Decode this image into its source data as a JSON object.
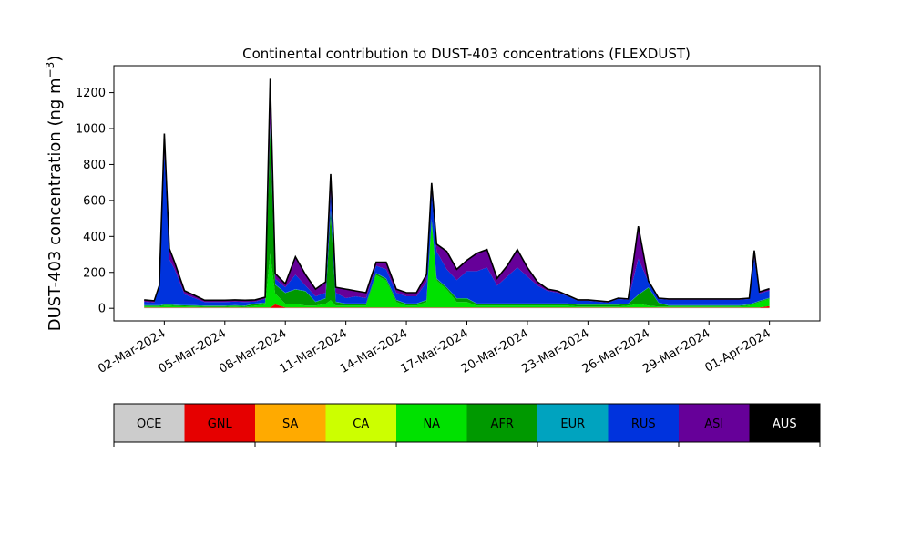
{
  "chart_data": {
    "type": "area",
    "stacked": true,
    "title": "Continental contribution to DUST-403 concentrations (FLEXDUST)",
    "ylabel_main": "DUST-403 concentration (ng m",
    "ylabel_exp": "−3",
    "ylabel_close": ")",
    "xlabel": "",
    "ylim": [
      -70,
      1350
    ],
    "xlim": [
      "2024-02-28T12:00",
      "2024-04-03T12:00"
    ],
    "yticks": [
      0,
      200,
      400,
      600,
      800,
      1000,
      1200
    ],
    "xticks": [
      {
        "date": "2024-03-02",
        "label": "02-Mar-2024"
      },
      {
        "date": "2024-03-05",
        "label": "05-Mar-2024"
      },
      {
        "date": "2024-03-08",
        "label": "08-Mar-2024"
      },
      {
        "date": "2024-03-11",
        "label": "11-Mar-2024"
      },
      {
        "date": "2024-03-14",
        "label": "14-Mar-2024"
      },
      {
        "date": "2024-03-17",
        "label": "17-Mar-2024"
      },
      {
        "date": "2024-03-20",
        "label": "20-Mar-2024"
      },
      {
        "date": "2024-03-23",
        "label": "23-Mar-2024"
      },
      {
        "date": "2024-03-26",
        "label": "26-Mar-2024"
      },
      {
        "date": "2024-03-29",
        "label": "29-Mar-2024"
      },
      {
        "date": "2024-04-01",
        "label": "01-Apr-2024"
      }
    ],
    "grid": false,
    "legend": {
      "placement": "below",
      "entries": [
        {
          "name": "OCE",
          "color": "#cccccc"
        },
        {
          "name": "GNL",
          "color": "#e60000"
        },
        {
          "name": "SA",
          "color": "#ffaa00"
        },
        {
          "name": "CA",
          "color": "#ccff00"
        },
        {
          "name": "NA",
          "color": "#00e100"
        },
        {
          "name": "AFR",
          "color": "#009900"
        },
        {
          "name": "EUR",
          "color": "#00a3bf"
        },
        {
          "name": "RUS",
          "color": "#0033dd"
        },
        {
          "name": "ASI",
          "color": "#660099"
        },
        {
          "name": "AUS",
          "color": "#000000"
        }
      ]
    },
    "x": [
      "2024-03-01T00:00",
      "2024-03-01T12:00",
      "2024-03-01T18:00",
      "2024-03-02T00:00",
      "2024-03-02T06:00",
      "2024-03-02T12:00",
      "2024-03-03T00:00",
      "2024-03-03T12:00",
      "2024-03-04T00:00",
      "2024-03-04T12:00",
      "2024-03-05T00:00",
      "2024-03-05T12:00",
      "2024-03-06T00:00",
      "2024-03-06T12:00",
      "2024-03-07T00:00",
      "2024-03-07T06:00",
      "2024-03-07T12:00",
      "2024-03-08T00:00",
      "2024-03-08T12:00",
      "2024-03-09T00:00",
      "2024-03-09T12:00",
      "2024-03-10T00:00",
      "2024-03-10T06:00",
      "2024-03-10T12:00",
      "2024-03-11T00:00",
      "2024-03-11T12:00",
      "2024-03-12T00:00",
      "2024-03-12T12:00",
      "2024-03-13T00:00",
      "2024-03-13T12:00",
      "2024-03-14T00:00",
      "2024-03-14T12:00",
      "2024-03-15T00:00",
      "2024-03-15T06:00",
      "2024-03-15T12:00",
      "2024-03-16T00:00",
      "2024-03-16T12:00",
      "2024-03-17T00:00",
      "2024-03-17T12:00",
      "2024-03-18T00:00",
      "2024-03-18T12:00",
      "2024-03-19T00:00",
      "2024-03-19T12:00",
      "2024-03-20T00:00",
      "2024-03-20T12:00",
      "2024-03-21T00:00",
      "2024-03-21T12:00",
      "2024-03-22T00:00",
      "2024-03-22T12:00",
      "2024-03-23T00:00",
      "2024-03-23T12:00",
      "2024-03-24T00:00",
      "2024-03-24T12:00",
      "2024-03-25T00:00",
      "2024-03-25T12:00",
      "2024-03-26T00:00",
      "2024-03-26T12:00",
      "2024-03-27T00:00",
      "2024-03-27T12:00",
      "2024-03-28T00:00",
      "2024-03-28T12:00",
      "2024-03-29T00:00",
      "2024-03-29T12:00",
      "2024-03-30T00:00",
      "2024-03-30T12:00",
      "2024-03-31T00:00",
      "2024-03-31T06:00",
      "2024-03-31T12:00",
      "2024-04-01T00:00"
    ],
    "series": [
      {
        "name": "OCE",
        "values": [
          2,
          2,
          2,
          2,
          2,
          2,
          2,
          2,
          2,
          2,
          2,
          2,
          2,
          2,
          2,
          2,
          2,
          2,
          2,
          2,
          2,
          2,
          2,
          2,
          2,
          2,
          2,
          2,
          2,
          2,
          2,
          2,
          2,
          2,
          2,
          2,
          2,
          2,
          2,
          2,
          2,
          2,
          2,
          2,
          2,
          2,
          2,
          2,
          2,
          2,
          2,
          2,
          2,
          2,
          2,
          2,
          2,
          2,
          2,
          2,
          2,
          2,
          2,
          2,
          2,
          2,
          2,
          2,
          2
        ]
      },
      {
        "name": "GNL",
        "values": [
          3,
          3,
          3,
          3,
          3,
          3,
          3,
          3,
          3,
          3,
          3,
          3,
          3,
          3,
          3,
          3,
          20,
          3,
          3,
          3,
          3,
          3,
          3,
          3,
          3,
          3,
          3,
          3,
          3,
          3,
          3,
          3,
          3,
          3,
          3,
          3,
          3,
          3,
          3,
          3,
          3,
          3,
          3,
          3,
          3,
          3,
          3,
          3,
          3,
          3,
          3,
          3,
          3,
          3,
          3,
          3,
          3,
          3,
          3,
          3,
          3,
          3,
          3,
          3,
          3,
          3,
          3,
          3,
          10
        ]
      },
      {
        "name": "SA",
        "values": [
          0,
          0,
          0,
          0,
          0,
          0,
          0,
          0,
          0,
          0,
          0,
          0,
          0,
          0,
          0,
          0,
          0,
          0,
          0,
          0,
          0,
          0,
          0,
          0,
          0,
          0,
          0,
          0,
          0,
          0,
          0,
          0,
          0,
          0,
          0,
          0,
          0,
          0,
          0,
          0,
          0,
          0,
          0,
          0,
          0,
          0,
          0,
          0,
          0,
          0,
          0,
          0,
          0,
          0,
          0,
          0,
          0,
          0,
          0,
          0,
          0,
          0,
          0,
          0,
          0,
          0,
          0,
          0,
          0
        ]
      },
      {
        "name": "CA",
        "values": [
          0,
          0,
          0,
          0,
          0,
          0,
          0,
          0,
          0,
          0,
          0,
          0,
          0,
          0,
          0,
          0,
          0,
          0,
          0,
          0,
          0,
          0,
          0,
          0,
          0,
          0,
          0,
          0,
          0,
          0,
          0,
          0,
          0,
          0,
          0,
          0,
          0,
          0,
          0,
          0,
          0,
          0,
          0,
          0,
          0,
          0,
          0,
          0,
          0,
          0,
          0,
          0,
          0,
          0,
          0,
          0,
          0,
          0,
          0,
          0,
          0,
          0,
          0,
          0,
          0,
          0,
          0,
          0,
          0
        ]
      },
      {
        "name": "NA",
        "values": [
          5,
          5,
          5,
          10,
          10,
          8,
          6,
          5,
          3,
          3,
          3,
          5,
          3,
          10,
          15,
          300,
          60,
          20,
          20,
          10,
          10,
          20,
          40,
          10,
          10,
          10,
          10,
          180,
          150,
          30,
          10,
          10,
          30,
          480,
          150,
          100,
          30,
          30,
          10,
          10,
          10,
          10,
          10,
          10,
          10,
          10,
          10,
          10,
          5,
          5,
          5,
          5,
          5,
          10,
          20,
          10,
          5,
          5,
          5,
          5,
          5,
          5,
          5,
          5,
          5,
          10,
          20,
          30,
          40
        ]
      },
      {
        "name": "AFR",
        "values": [
          5,
          5,
          5,
          5,
          5,
          5,
          5,
          5,
          5,
          5,
          5,
          5,
          5,
          10,
          10,
          700,
          50,
          60,
          80,
          80,
          20,
          30,
          500,
          20,
          10,
          10,
          10,
          10,
          10,
          10,
          10,
          10,
          10,
          10,
          10,
          10,
          20,
          20,
          10,
          10,
          10,
          10,
          10,
          10,
          10,
          10,
          10,
          10,
          10,
          10,
          10,
          10,
          10,
          10,
          50,
          100,
          20,
          5,
          5,
          5,
          5,
          5,
          5,
          5,
          5,
          5,
          5,
          5,
          5
        ]
      },
      {
        "name": "EUR",
        "values": [
          2,
          2,
          2,
          2,
          2,
          2,
          2,
          2,
          2,
          2,
          2,
          2,
          2,
          2,
          2,
          2,
          2,
          2,
          2,
          2,
          2,
          2,
          2,
          2,
          2,
          2,
          2,
          2,
          2,
          2,
          2,
          2,
          2,
          2,
          2,
          2,
          2,
          2,
          2,
          2,
          2,
          2,
          2,
          2,
          2,
          2,
          2,
          2,
          2,
          2,
          2,
          2,
          2,
          2,
          2,
          2,
          2,
          2,
          2,
          2,
          2,
          2,
          2,
          2,
          2,
          2,
          2,
          2,
          2
        ]
      },
      {
        "name": "RUS",
        "values": [
          20,
          15,
          100,
          850,
          250,
          200,
          60,
          40,
          20,
          20,
          20,
          20,
          20,
          10,
          20,
          20,
          30,
          30,
          80,
          30,
          30,
          30,
          100,
          50,
          30,
          40,
          30,
          40,
          50,
          40,
          40,
          40,
          100,
          150,
          150,
          100,
          100,
          150,
          180,
          200,
          100,
          150,
          200,
          150,
          100,
          70,
          60,
          40,
          20,
          20,
          15,
          10,
          30,
          20,
          200,
          30,
          20,
          30,
          30,
          30,
          30,
          30,
          30,
          30,
          30,
          30,
          250,
          40,
          40
        ]
      },
      {
        "name": "ASI",
        "values": [
          10,
          10,
          10,
          100,
          60,
          40,
          20,
          15,
          10,
          10,
          10,
          10,
          10,
          10,
          10,
          250,
          30,
          20,
          100,
          60,
          40,
          60,
          100,
          30,
          50,
          30,
          30,
          20,
          40,
          20,
          20,
          20,
          40,
          50,
          40,
          100,
          60,
          60,
          100,
          100,
          40,
          60,
          100,
          50,
          20,
          10,
          10,
          5,
          5,
          5,
          5,
          5,
          5,
          5,
          180,
          5,
          5,
          5,
          5,
          5,
          5,
          5,
          5,
          5,
          5,
          5,
          40,
          10,
          10
        ]
      },
      {
        "name": "AUS",
        "values": [
          0,
          0,
          0,
          0,
          0,
          0,
          0,
          0,
          0,
          0,
          0,
          0,
          0,
          0,
          0,
          0,
          0,
          0,
          0,
          0,
          0,
          0,
          0,
          0,
          0,
          0,
          0,
          0,
          0,
          0,
          0,
          0,
          0,
          0,
          0,
          0,
          0,
          0,
          0,
          0,
          0,
          0,
          0,
          0,
          0,
          0,
          0,
          0,
          0,
          0,
          0,
          0,
          0,
          0,
          0,
          0,
          0,
          0,
          0,
          0,
          0,
          0,
          0,
          0,
          0,
          0,
          0,
          0,
          0
        ]
      }
    ]
  }
}
